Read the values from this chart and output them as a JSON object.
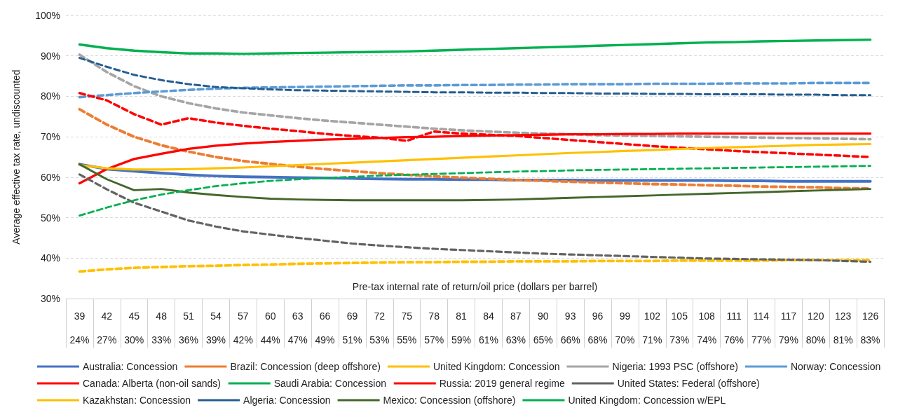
{
  "chart_data": {
    "type": "line",
    "ylabel": "Average effective tax rate, undiscounted",
    "xlabel": "Pre-tax internal rate of return/oil price (dollars per barrel)",
    "categories": [
      "39\n24%",
      "42\n27%",
      "45\n30%",
      "48\n33%",
      "51\n36%",
      "54\n39%",
      "57\n42%",
      "60\n44%",
      "63\n47%",
      "66\n49%",
      "69\n51%",
      "72\n53%",
      "75\n55%",
      "78\n57%",
      "81\n59%",
      "84\n61%",
      "87\n63%",
      "90\n65%",
      "93\n66%",
      "96\n68%",
      "99\n70%",
      "102\n71%",
      "105\n73%",
      "108\n74%",
      "111\n76%",
      "114\n77%",
      "117\n79%",
      "120\n80%",
      "123\n81%",
      "126\n83%"
    ],
    "ylim": [
      30,
      100
    ],
    "yticks": [
      {
        "value": 30,
        "label": "30%"
      },
      {
        "value": 40,
        "label": "40%"
      },
      {
        "value": 50,
        "label": "50%"
      },
      {
        "value": 60,
        "label": "60%"
      },
      {
        "value": 70,
        "label": "70%"
      },
      {
        "value": 80,
        "label": "80%"
      },
      {
        "value": 90,
        "label": "90%"
      },
      {
        "value": 100,
        "label": "100%"
      }
    ],
    "grid": "y",
    "legend": "bottom",
    "marker": "none",
    "series": [
      {
        "name": "Australia: Concession",
        "color": "#4472c4",
        "line_style": "solid",
        "values": [
          63.2,
          62,
          61.5,
          61,
          60.6,
          60.3,
          60.1,
          60,
          59.9,
          59.8,
          59.7,
          59.6,
          59.5,
          59.5,
          59.4,
          59.4,
          59.3,
          59.3,
          59.3,
          59.2,
          59.2,
          59.2,
          59.2,
          59.2,
          59.1,
          59.1,
          59,
          59,
          59,
          59
        ]
      },
      {
        "name": "Brazil: Concession (deep offshore)",
        "color": "#ed7d31",
        "line_style": "dashed",
        "values": [
          76.8,
          73,
          70,
          67.9,
          66.3,
          65,
          64,
          63.3,
          62.6,
          62,
          61.5,
          61,
          60.6,
          60.2,
          59.9,
          59.6,
          59.3,
          59.1,
          58.9,
          58.7,
          58.5,
          58.3,
          58.2,
          58,
          57.9,
          57.7,
          57.6,
          57.5,
          57.3,
          57.2
        ]
      },
      {
        "name": "United Kingdom: Concession",
        "color": "#ffc000",
        "line_style": "dashed",
        "values": [
          36.7,
          37.2,
          37.6,
          37.8,
          38,
          38.1,
          38.3,
          38.4,
          38.6,
          38.7,
          38.8,
          38.9,
          39,
          39,
          39.1,
          39.1,
          39.2,
          39.2,
          39.2,
          39.3,
          39.3,
          39.3,
          39.4,
          39.4,
          39.4,
          39.4,
          39.5,
          39.5,
          39.5,
          39.5
        ]
      },
      {
        "name": "Nigeria: 1993 PSC (offshore)",
        "color": "#a5a5a5",
        "line_style": "dashed",
        "values": [
          90.3,
          86,
          82.5,
          80,
          78.3,
          77,
          76,
          75.3,
          74.6,
          74,
          73.5,
          73,
          72.5,
          72,
          71.6,
          71.3,
          71,
          70.8,
          70.6,
          70.4,
          70.3,
          70.2,
          70.1,
          70,
          69.9,
          69.8,
          69.7,
          69.6,
          69.5,
          69.4
        ]
      },
      {
        "name": "Norway: Concession",
        "color": "#5b9bd5",
        "line_style": "dashed",
        "values": [
          79.8,
          80.3,
          80.8,
          81.2,
          81.6,
          81.9,
          82.1,
          82.2,
          82.3,
          82.4,
          82.5,
          82.6,
          82.7,
          82.7,
          82.8,
          82.8,
          82.9,
          82.9,
          83,
          83,
          83,
          83.1,
          83.1,
          83.1,
          83.2,
          83.2,
          83.2,
          83.3,
          83.3,
          83.3
        ]
      },
      {
        "name": "Canada: Alberta (non-oil sands)",
        "color": "#ff0000",
        "line_style": "dashed",
        "values": [
          80.8,
          79,
          75.6,
          73,
          74.6,
          73.5,
          72.7,
          72,
          71.4,
          70.7,
          70.2,
          69.8,
          69,
          71.3,
          70.8,
          70.5,
          70.2,
          69.7,
          69.2,
          68.7,
          68.2,
          67.7,
          67.3,
          66.9,
          66.5,
          66.2,
          65.9,
          65.6,
          65.3,
          65
        ]
      },
      {
        "name": "Saudi Arabia: Concession",
        "color": "#00b050",
        "line_style": "solid",
        "values": [
          92.8,
          91.9,
          91.3,
          90.9,
          90.6,
          90.6,
          90.5,
          90.6,
          90.7,
          90.8,
          90.9,
          91,
          91.1,
          91.3,
          91.5,
          91.7,
          91.9,
          92.1,
          92.3,
          92.5,
          92.7,
          92.9,
          93.1,
          93.3,
          93.4,
          93.6,
          93.7,
          93.8,
          93.9,
          94
        ]
      },
      {
        "name": "Russia: 2019 general regime",
        "color": "#ff0000",
        "line_style": "solid",
        "values": [
          58.5,
          62,
          64.5,
          65.8,
          67,
          67.8,
          68.3,
          68.7,
          69,
          69.3,
          69.5,
          69.7,
          69.9,
          70,
          70.2,
          70.3,
          70.4,
          70.5,
          70.6,
          70.6,
          70.7,
          70.7,
          70.8,
          70.8,
          70.8,
          70.8,
          70.8,
          70.8,
          70.8,
          70.8
        ]
      },
      {
        "name": "United States: Federal (offshore)",
        "color": "#636363",
        "line_style": "dashed",
        "values": [
          60.7,
          57,
          53.7,
          51.5,
          49.3,
          47.8,
          46.6,
          45.8,
          45,
          44.3,
          43.6,
          43.1,
          42.7,
          42.3,
          42,
          41.7,
          41.4,
          41.1,
          40.9,
          40.7,
          40.5,
          40.3,
          40.1,
          39.9,
          39.8,
          39.7,
          39.6,
          39.5,
          39.3,
          39.1
        ]
      },
      {
        "name": "Kazakhstan: Concession",
        "color": "#ffc000",
        "line_style": "solid",
        "values": [
          63,
          62.2,
          61.9,
          61.9,
          62,
          62.2,
          62.4,
          62.7,
          63,
          63.3,
          63.6,
          63.9,
          64.2,
          64.5,
          64.8,
          65.1,
          65.4,
          65.7,
          66,
          66.2,
          66.5,
          66.7,
          67,
          67.2,
          67.4,
          67.6,
          67.8,
          68,
          68.1,
          68.2
        ]
      },
      {
        "name": "Algeria: Concession",
        "color": "#255e91",
        "line_style": "dashed",
        "values": [
          89.5,
          87.3,
          85.3,
          84,
          83,
          82.3,
          82,
          81.7,
          81.5,
          81.4,
          81.3,
          81.2,
          81.1,
          81,
          81,
          80.9,
          80.9,
          80.8,
          80.8,
          80.7,
          80.7,
          80.6,
          80.6,
          80.5,
          80.5,
          80.5,
          80.4,
          80.4,
          80.3,
          80.3
        ]
      },
      {
        "name": "Mexico: Concession (offshore)",
        "color": "#43682b",
        "line_style": "solid",
        "values": [
          63.2,
          59.5,
          56.8,
          57.1,
          56.2,
          55.6,
          55.1,
          54.7,
          54.5,
          54.4,
          54.3,
          54.3,
          54.3,
          54.3,
          54.3,
          54.4,
          54.5,
          54.7,
          54.9,
          55.1,
          55.3,
          55.5,
          55.7,
          55.9,
          56.1,
          56.3,
          56.5,
          56.7,
          56.9,
          57.1
        ]
      },
      {
        "name": "United Kingdom: Concession w/EPL",
        "color": "#00b050",
        "line_style": "dashed",
        "values": [
          50.5,
          52.5,
          54.3,
          55.7,
          56.8,
          57.8,
          58.5,
          59.1,
          59.5,
          59.8,
          60.1,
          60.4,
          60.6,
          60.8,
          61,
          61.2,
          61.4,
          61.5,
          61.7,
          61.8,
          61.9,
          62,
          62.1,
          62.2,
          62.3,
          62.4,
          62.5,
          62.6,
          62.7,
          62.8
        ]
      }
    ]
  }
}
